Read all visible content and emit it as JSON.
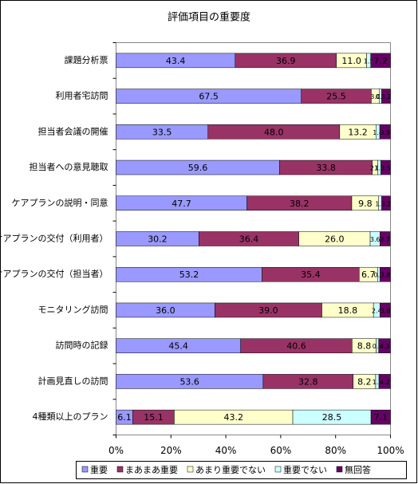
{
  "chart_data": {
    "type": "stacked-bar-horizontal",
    "title": "評価項目の重要度",
    "categories": [
      "課題分析票",
      "利用者宅訪問",
      "担当者会議の開催",
      "担当者への意見聴取",
      "ケアプランの説明・同意",
      "ケアプランの交付（利用者）",
      "ケアプランの交付（担当者）",
      "モニタリング訪問",
      "訪問時の記録",
      "計画見直しの訪問",
      "4種類以上のプラン"
    ],
    "series": [
      {
        "name": "重要",
        "color": "#9999ff",
        "label_color": "#000000",
        "values": [
          43.4,
          67.5,
          33.5,
          59.6,
          47.7,
          30.2,
          53.2,
          36.0,
          45.4,
          53.6,
          6.1
        ]
      },
      {
        "name": "まあまあ重要",
        "color": "#993366",
        "label_color": "#000000",
        "values": [
          36.9,
          25.5,
          48.0,
          33.8,
          38.2,
          36.4,
          35.4,
          39.0,
          40.6,
          32.8,
          15.1
        ]
      },
      {
        "name": "あまり重要でない",
        "color": "#ffffcc",
        "label_color": "#000000",
        "values": [
          11.0,
          3.0,
          13.2,
          2.0,
          9.8,
          26.0,
          6.7,
          18.8,
          8.8,
          8.2,
          43.2
        ]
      },
      {
        "name": "重要でない",
        "color": "#ccffff",
        "label_color": "#000000",
        "values": [
          1.5,
          0.8,
          1.4,
          1.1,
          1.1,
          3.6,
          0.9,
          2.4,
          0.9,
          1.2,
          28.5
        ]
      },
      {
        "name": "無回答",
        "color": "#660066",
        "label_color": "#33ff33",
        "values": [
          7.2,
          3.2,
          3.9,
          3.5,
          3.2,
          3.7,
          3.8,
          3.8,
          4.3,
          4.2,
          7.1
        ]
      }
    ],
    "xlim": [
      0,
      100
    ],
    "xticks": [
      {
        "value": 0,
        "label": "0%"
      },
      {
        "value": 20,
        "label": "20%"
      },
      {
        "value": 40,
        "label": "40%"
      },
      {
        "value": 60,
        "label": "60%"
      },
      {
        "value": 80,
        "label": "80%"
      },
      {
        "value": 100,
        "label": "100%"
      }
    ],
    "value_format": "fixed1"
  }
}
